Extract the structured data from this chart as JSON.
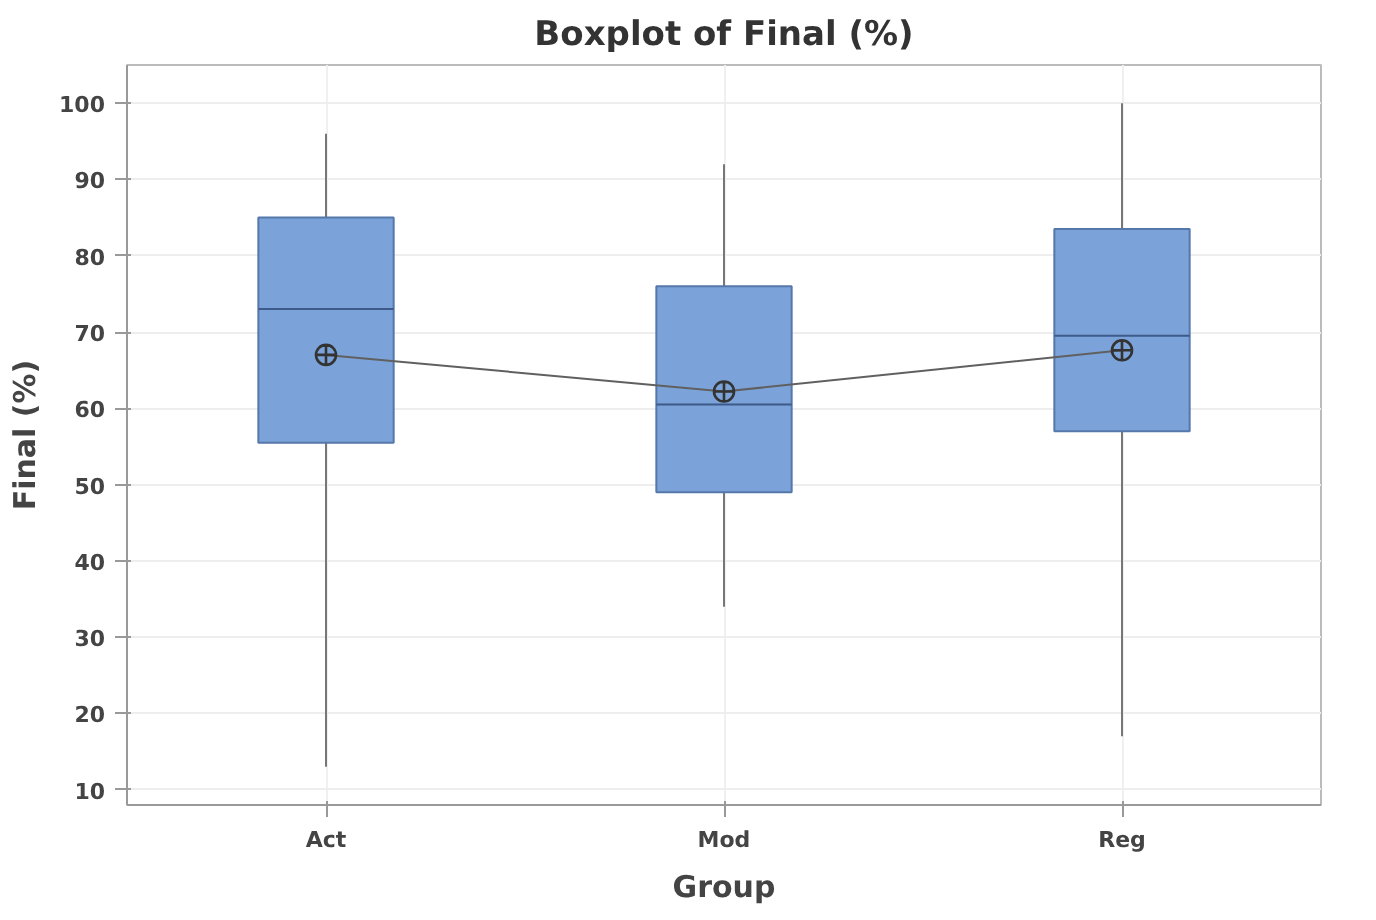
{
  "chart_data": {
    "type": "box",
    "title": "Boxplot of Final (%)",
    "xlabel": "Group",
    "ylabel": "Final (%)",
    "categories": [
      "Act",
      "Mod",
      "Reg"
    ],
    "ylim": [
      8,
      105
    ],
    "yticks": [
      10,
      20,
      30,
      40,
      50,
      60,
      70,
      80,
      90,
      100
    ],
    "grid": true,
    "series": [
      {
        "color": "#7ba3d9",
        "boxes": [
          {
            "low": 13,
            "q1": 55.5,
            "median": 73,
            "q3": 85,
            "high": 96
          },
          {
            "low": 34,
            "q1": 49,
            "median": 60.5,
            "q3": 76,
            "high": 92
          },
          {
            "low": 17,
            "q1": 57,
            "median": 69.5,
            "q3": 83.5,
            "high": 100
          }
        ]
      },
      {
        "type": "line",
        "color": "#606060",
        "marker": "circle",
        "values": [
          67,
          62.2,
          67.6
        ]
      }
    ]
  }
}
